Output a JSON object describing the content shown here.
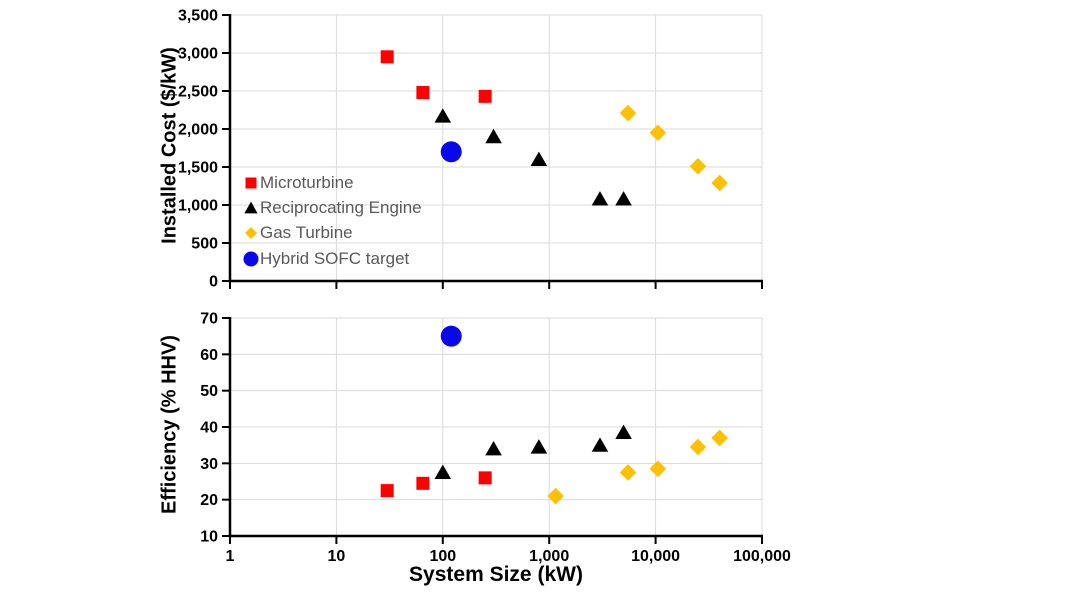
{
  "figure": {
    "background": "#FFFFFF",
    "axis_color": "#000000",
    "gridline_color": "#D9D9D9",
    "tick_label_color": "#000000",
    "legend_text_color": "#595959"
  },
  "axis_titles": {
    "top_y": "Installed Cost ($/kW)",
    "bottom_y": "Efficiency (% HHV)",
    "x": "System Size (kW)"
  },
  "chart_data": [
    {
      "type": "scatter",
      "title": "",
      "xlabel": "System Size (kW)",
      "ylabel": "Installed Cost ($/kW)",
      "x_scale": "log",
      "xlim": [
        1,
        100000
      ],
      "ylim": [
        0,
        3500
      ],
      "grid": true,
      "legend_position": "inside-lower-left",
      "x_tick_values": [
        1,
        10,
        100,
        1000,
        10000,
        100000
      ],
      "x_tick_labels": [
        "1",
        "10",
        "100",
        "1,000",
        "10,000",
        "100,000"
      ],
      "show_x_tick_labels": false,
      "y_tick_step": 500,
      "y_tick_values": [
        0,
        500,
        1000,
        1500,
        2000,
        2500,
        3000,
        3500
      ],
      "y_tick_labels": [
        "0",
        "500",
        "1,000",
        "1,500",
        "2,000",
        "2,500",
        "3,000",
        "3,500"
      ],
      "series": [
        {
          "name": "Microturbine",
          "marker": "square",
          "color": "#FF0000",
          "points": [
            [
              30,
              2950
            ],
            [
              65,
              2480
            ],
            [
              250,
              2430
            ]
          ]
        },
        {
          "name": "Reciprocating Engine",
          "marker": "triangle",
          "color": "#000000",
          "points": [
            [
              100,
              2170
            ],
            [
              300,
              1900
            ],
            [
              800,
              1600
            ],
            [
              3000,
              1080
            ],
            [
              5000,
              1080
            ]
          ]
        },
        {
          "name": "Gas Turbine",
          "marker": "diamond",
          "color": "#FFC000",
          "points": [
            [
              5500,
              2210
            ],
            [
              10500,
              1950
            ],
            [
              25000,
              1510
            ],
            [
              40000,
              1290
            ]
          ]
        },
        {
          "name": "Hybrid SOFC target",
          "marker": "circle",
          "color": "#0808E8",
          "points": [
            [
              120,
              1700
            ]
          ]
        }
      ]
    },
    {
      "type": "scatter",
      "title": "",
      "xlabel": "System Size (kW)",
      "ylabel": "Efficiency (% HHV)",
      "x_scale": "log",
      "xlim": [
        1,
        100000
      ],
      "ylim": [
        10,
        70
      ],
      "grid": true,
      "legend_position": "none",
      "x_tick_values": [
        1,
        10,
        100,
        1000,
        10000,
        100000
      ],
      "x_tick_labels": [
        "1",
        "10",
        "100",
        "1,000",
        "10,000",
        "100,000"
      ],
      "show_x_tick_labels": true,
      "y_tick_step": 10,
      "y_tick_values": [
        10,
        20,
        30,
        40,
        50,
        60,
        70
      ],
      "y_tick_labels": [
        "10",
        "20",
        "30",
        "40",
        "50",
        "60",
        "70"
      ],
      "series": [
        {
          "name": "Microturbine",
          "marker": "square",
          "color": "#FF0000",
          "points": [
            [
              30,
              22.5
            ],
            [
              65,
              24.5
            ],
            [
              250,
              26
            ]
          ]
        },
        {
          "name": "Reciprocating Engine",
          "marker": "triangle",
          "color": "#000000",
          "points": [
            [
              100,
              27.5
            ],
            [
              300,
              34
            ],
            [
              800,
              34.5
            ],
            [
              3000,
              35
            ],
            [
              5000,
              38.5
            ]
          ]
        },
        {
          "name": "Gas Turbine",
          "marker": "diamond",
          "color": "#FFC000",
          "points": [
            [
              1150,
              21
            ],
            [
              5500,
              27.5
            ],
            [
              10500,
              28.5
            ],
            [
              25000,
              34.5
            ],
            [
              40000,
              37
            ]
          ]
        },
        {
          "name": "Hybrid SOFC target",
          "marker": "circle",
          "color": "#0808E8",
          "points": [
            [
              120,
              65
            ]
          ]
        }
      ]
    }
  ]
}
